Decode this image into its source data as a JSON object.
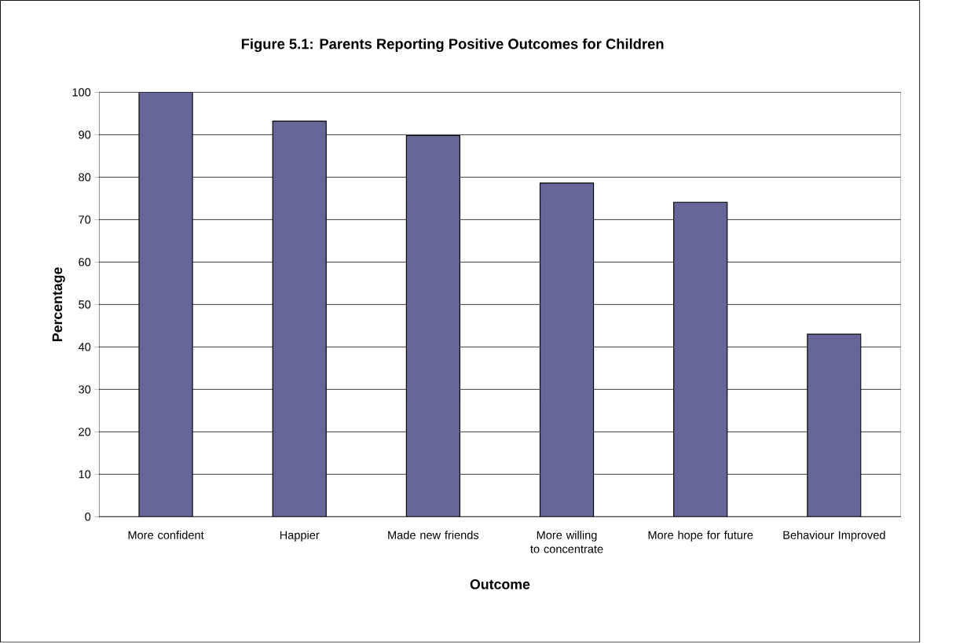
{
  "chart_data": {
    "type": "bar",
    "title": "Figure 5.1: Parents Reporting Positive Outcomes for Children",
    "xlabel": "Outcome",
    "ylabel": "Percentage",
    "categories": [
      "More confident",
      "Happier",
      "Made new friends",
      "More willing to concentrate",
      "More hope for future",
      "Behaviour Improved"
    ],
    "values": [
      100,
      93.2,
      89.8,
      78.6,
      74.1,
      43
    ],
    "color": "#666699",
    "ylim": [
      0,
      100
    ],
    "yticks": [
      0,
      10,
      20,
      30,
      40,
      50,
      60,
      70,
      80,
      90,
      100
    ],
    "grid": "y"
  }
}
